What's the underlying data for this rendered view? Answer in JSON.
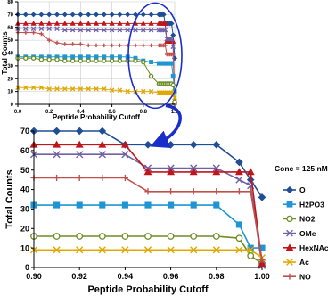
{
  "chart_data": [
    {
      "type": "line",
      "title": "",
      "xlabel": "Peptide Probability Cutoff",
      "ylabel": "Total Counts",
      "xlim": [
        0.0,
        1.0
      ],
      "ylim": [
        0,
        80
      ],
      "x_ticks": [
        "0.0",
        "0.2",
        "0.4",
        "0.6",
        "0.8",
        "1.0"
      ],
      "y_ticks": [
        "0",
        "10",
        "20",
        "30",
        "40",
        "50",
        "60",
        "70",
        "80"
      ],
      "grid": true,
      "x": [
        0.0,
        0.05,
        0.1,
        0.15,
        0.2,
        0.25,
        0.3,
        0.35,
        0.4,
        0.45,
        0.5,
        0.55,
        0.6,
        0.65,
        0.7,
        0.75,
        0.8,
        0.85,
        0.9,
        0.91,
        0.92,
        0.93,
        0.94,
        0.95,
        0.96,
        0.97,
        0.98,
        0.99,
        1.0
      ],
      "series": [
        {
          "name": "O",
          "values": [
            70,
            70,
            70,
            70,
            70,
            70,
            70,
            70,
            70,
            70,
            70,
            70,
            70,
            70,
            70,
            70,
            70,
            70,
            70,
            70,
            70,
            70,
            63,
            63,
            63,
            63,
            63,
            54,
            36
          ]
        },
        {
          "name": "HexNAc",
          "values": [
            63,
            63,
            63,
            63,
            63,
            63,
            63,
            63,
            63,
            63,
            63,
            63,
            63,
            63,
            63,
            63,
            63,
            63,
            63,
            63,
            63,
            63,
            63,
            49,
            49,
            49,
            49,
            49,
            2
          ]
        },
        {
          "name": "OMe",
          "values": [
            59,
            59,
            59,
            59,
            59,
            59,
            58,
            58,
            58,
            58,
            58,
            58,
            58,
            58,
            58,
            58,
            58,
            58,
            58,
            58,
            58,
            58,
            58,
            51,
            51,
            51,
            51,
            45,
            1
          ]
        },
        {
          "name": "NO",
          "values": [
            56,
            56,
            56,
            55,
            50,
            48,
            47,
            47,
            47,
            46,
            46,
            46,
            46,
            46,
            46,
            46,
            46,
            46,
            46,
            46,
            46,
            46,
            46,
            39,
            39,
            39,
            39,
            39,
            4
          ]
        },
        {
          "name": "H2PO3",
          "values": [
            37,
            37,
            37,
            37,
            37,
            37,
            37,
            37,
            37,
            37,
            37,
            37,
            37,
            37,
            37,
            36,
            34,
            33,
            32,
            32,
            32,
            32,
            32,
            32,
            32,
            32,
            32,
            22,
            10
          ]
        },
        {
          "name": "NO2",
          "values": [
            36,
            36,
            36,
            35,
            35,
            35,
            34,
            34,
            34,
            34,
            34,
            34,
            34,
            34,
            34,
            34,
            33,
            22,
            16,
            16,
            16,
            16,
            16,
            16,
            16,
            16,
            16,
            15,
            2
          ]
        },
        {
          "name": "Ac",
          "values": [
            13,
            13,
            13,
            13,
            12,
            12,
            12,
            12,
            12,
            12,
            12,
            12,
            11,
            11,
            10,
            10,
            10,
            10,
            9,
            9,
            9,
            9,
            9,
            9,
            9,
            9,
            9,
            9,
            5
          ]
        }
      ],
      "colors": {
        "O": "#1f4e96",
        "HexNAc": "#c0151b",
        "OMe": "#7060a8",
        "NO": "#c0504d",
        "H2PO3": "#1e95d4",
        "NO2": "#6b8e23",
        "Ac": "#e0a800"
      },
      "markers": {
        "O": "diamond",
        "HexNAc": "triangle",
        "OMe": "x",
        "NO": "plus",
        "H2PO3": "square",
        "NO2": "circle",
        "Ac": "x"
      }
    },
    {
      "type": "line",
      "title": "",
      "xlabel": "Peptide Probability Cutoff",
      "ylabel": "Total Counts",
      "xlim": [
        0.9,
        1.0
      ],
      "ylim": [
        0,
        70
      ],
      "x_ticks": [
        "0.90",
        "0.92",
        "0.94",
        "0.96",
        "0.98",
        "1.00"
      ],
      "y_ticks": [
        "0",
        "10",
        "20",
        "30",
        "40",
        "50",
        "60",
        "70"
      ],
      "grid": false,
      "legend_title": "Conc = 125 nM",
      "legend": "right",
      "x": [
        0.9,
        0.91,
        0.92,
        0.93,
        0.94,
        0.95,
        0.96,
        0.97,
        0.98,
        0.99,
        0.995,
        1.0
      ],
      "series": [
        {
          "name": "O",
          "values": [
            70,
            70,
            70,
            70,
            63,
            63,
            63,
            63,
            63,
            54,
            45,
            36
          ]
        },
        {
          "name": "H2PO3",
          "values": [
            32,
            32,
            32,
            32,
            32,
            32,
            32,
            32,
            32,
            22,
            10,
            10
          ]
        },
        {
          "name": "NO2",
          "values": [
            16,
            16,
            16,
            16,
            16,
            16,
            16,
            16,
            16,
            15,
            6,
            2
          ]
        },
        {
          "name": "OMe",
          "values": [
            58,
            58,
            58,
            58,
            58,
            51,
            51,
            51,
            51,
            45,
            42,
            1
          ]
        },
        {
          "name": "HexNAc",
          "values": [
            63,
            63,
            63,
            63,
            63,
            49,
            49,
            49,
            49,
            49,
            49,
            2
          ]
        },
        {
          "name": "Ac",
          "values": [
            9,
            9,
            9,
            9,
            9,
            9,
            9,
            9,
            9,
            9,
            9,
            5
          ]
        },
        {
          "name": "NO",
          "values": [
            46,
            46,
            46,
            46,
            46,
            39,
            39,
            39,
            39,
            39,
            39,
            4
          ]
        }
      ],
      "colors": {
        "O": "#1f4e96",
        "HexNAc": "#c0151b",
        "OMe": "#7060a8",
        "NO": "#c0504d",
        "H2PO3": "#1e95d4",
        "NO2": "#6b8e23",
        "Ac": "#e0a800"
      },
      "markers": {
        "O": "diamond",
        "HexNAc": "triangle",
        "OMe": "x",
        "NO": "plus",
        "H2PO3": "square",
        "NO2": "circle",
        "Ac": "x"
      }
    }
  ],
  "zoom_annotation": {
    "shape": "ellipse",
    "color": "#1a2fc9",
    "arrow": "curved"
  }
}
